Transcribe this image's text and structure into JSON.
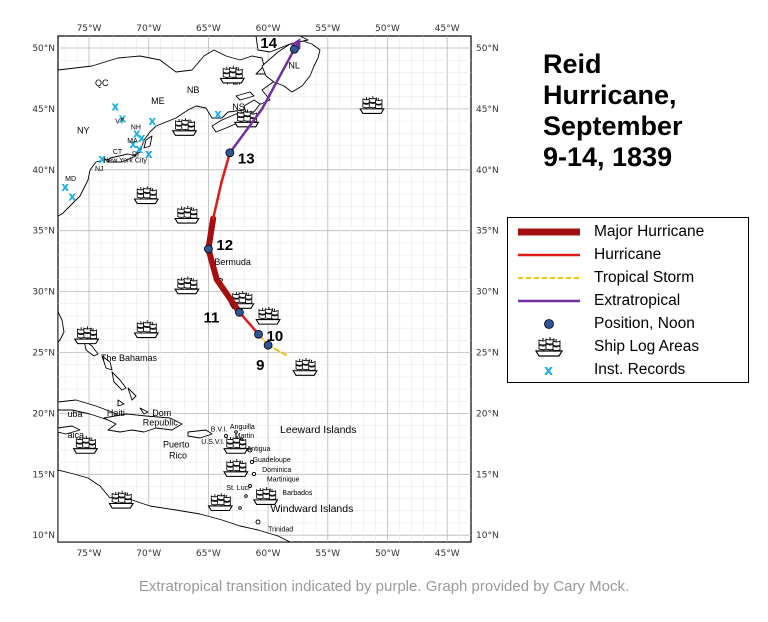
{
  "title_lines": [
    "Reid",
    "Hurricane,",
    "September",
    "9-14, 1839"
  ],
  "caption": "Extratropical transition indicated by purple. Graph provided by Cary Mock.",
  "axes": {
    "lon_labels": [
      "75°W",
      "70°W",
      "65°W",
      "60°W",
      "55°W",
      "50°W",
      "45°W"
    ],
    "lat_labels": [
      "50°N",
      "45°N",
      "40°N",
      "35°N",
      "30°N",
      "25°N",
      "20°N",
      "15°N",
      "10°N"
    ]
  },
  "colors": {
    "major": "#a50f0f",
    "hurricane": "#e01a1a",
    "tropical_storm": "#f0c020",
    "extratropical": "#7030a0",
    "noon": "#2f5597",
    "inst": "#1ab0e0"
  },
  "legend": [
    {
      "key": "major",
      "label": "Major Hurricane",
      "symbol": "thick-line"
    },
    {
      "key": "hurricane",
      "label": "Hurricane",
      "symbol": "line"
    },
    {
      "key": "tropical_storm",
      "label": "Tropical Storm",
      "symbol": "dashed-line"
    },
    {
      "key": "extratropical",
      "label": "Extratropical",
      "symbol": "line"
    },
    {
      "key": "noon",
      "label": "Position, Noon",
      "symbol": "dot"
    },
    {
      "key": "ship",
      "label": "Ship Log Areas",
      "symbol": "ship-icon"
    },
    {
      "key": "inst",
      "label": "Inst. Records",
      "symbol": "x-mark"
    }
  ],
  "track": [
    {
      "lon": -58.5,
      "lat": 24.8,
      "category": "tropical_storm"
    },
    {
      "lon": -60.0,
      "lat": 25.6,
      "category": "tropical_storm"
    },
    {
      "lon": -60.8,
      "lat": 26.5,
      "category": "hurricane"
    },
    {
      "lon": -62.4,
      "lat": 28.3,
      "category": "hurricane"
    },
    {
      "lon": -64.3,
      "lat": 31.0,
      "category": "major"
    },
    {
      "lon": -65.0,
      "lat": 33.5,
      "category": "major"
    },
    {
      "lon": -64.6,
      "lat": 36.0,
      "category": "hurricane"
    },
    {
      "lon": -63.9,
      "lat": 39.0,
      "category": "hurricane"
    },
    {
      "lon": -63.2,
      "lat": 41.4,
      "category": "extratropical"
    },
    {
      "lon": -60.5,
      "lat": 45.0,
      "category": "extratropical"
    },
    {
      "lon": -57.8,
      "lat": 49.9,
      "category": "extratropical"
    }
  ],
  "noon_positions": [
    {
      "day": "9",
      "lon": -60.0,
      "lat": 25.6
    },
    {
      "day": "10",
      "lon": -60.8,
      "lat": 26.5
    },
    {
      "day": "11",
      "lon": -62.4,
      "lat": 28.3
    },
    {
      "day": "12",
      "lon": -65.0,
      "lat": 33.5
    },
    {
      "day": "13",
      "lon": -63.2,
      "lat": 41.4
    },
    {
      "day": "14",
      "lon": -57.8,
      "lat": 49.9
    }
  ],
  "places": [
    {
      "text": "QC",
      "lon": -74.5,
      "lat": 46.9,
      "size": "normal"
    },
    {
      "text": "NB",
      "lon": -66.8,
      "lat": 46.3,
      "size": "normal"
    },
    {
      "text": "PEI",
      "lon": -63.5,
      "lat": 47.0,
      "size": "normal"
    },
    {
      "text": "NL",
      "lon": -58.3,
      "lat": 48.3,
      "size": "normal"
    },
    {
      "text": "ME",
      "lon": -69.8,
      "lat": 45.4,
      "size": "normal"
    },
    {
      "text": "NS",
      "lon": -63.0,
      "lat": 44.9,
      "size": "normal"
    },
    {
      "text": "NY",
      "lon": -76.0,
      "lat": 43.0,
      "size": "normal"
    },
    {
      "text": "VT",
      "lon": -72.8,
      "lat": 43.8,
      "size": "small"
    },
    {
      "text": "NH",
      "lon": -71.5,
      "lat": 43.3,
      "size": "small"
    },
    {
      "text": "MA",
      "lon": -71.8,
      "lat": 42.2,
      "size": "small"
    },
    {
      "text": "CT",
      "lon": -73.0,
      "lat": 41.3,
      "size": "small"
    },
    {
      "text": "RI",
      "lon": -71.4,
      "lat": 41.1,
      "size": "small"
    },
    {
      "text": "NJ",
      "lon": -74.5,
      "lat": 39.9,
      "size": "small"
    },
    {
      "text": "MD",
      "lon": -77.0,
      "lat": 39.1,
      "size": "small"
    },
    {
      "text": "New York City",
      "lon": -73.8,
      "lat": 40.6,
      "size": "small"
    },
    {
      "text": "Bermuda",
      "lon": -64.5,
      "lat": 32.2,
      "size": "normal"
    },
    {
      "text": "The Bahamas",
      "lon": -74.0,
      "lat": 24.3,
      "size": "normal"
    },
    {
      "text": "Haiti",
      "lon": -73.5,
      "lat": 19.8,
      "size": "normal"
    },
    {
      "text": "Dom",
      "lon": -69.7,
      "lat": 19.8,
      "size": "normal"
    },
    {
      "text": "Republic",
      "lon": -70.5,
      "lat": 19.0,
      "size": "normal"
    },
    {
      "text": "Puerto",
      "lon": -68.8,
      "lat": 17.2,
      "size": "normal"
    },
    {
      "text": "Rico",
      "lon": -68.3,
      "lat": 16.3,
      "size": "normal"
    },
    {
      "text": "B.V.I.",
      "lon": -64.8,
      "lat": 18.5,
      "size": "small"
    },
    {
      "text": "U.S.V.I.",
      "lon": -65.6,
      "lat": 17.5,
      "size": "small"
    },
    {
      "text": "Anguilla",
      "lon": -63.2,
      "lat": 18.7,
      "size": "small"
    },
    {
      "text": "Martin",
      "lon": -62.8,
      "lat": 18.0,
      "size": "small"
    },
    {
      "text": "Leeward Islands",
      "lon": -59.0,
      "lat": 18.4,
      "size": "large"
    },
    {
      "text": "Antigua",
      "lon": -61.8,
      "lat": 16.9,
      "size": "small"
    },
    {
      "text": "Guadeloupe",
      "lon": -61.3,
      "lat": 16.0,
      "size": "small"
    },
    {
      "text": "Dominica",
      "lon": -60.5,
      "lat": 15.2,
      "size": "small"
    },
    {
      "text": "Martinique",
      "lon": -60.1,
      "lat": 14.4,
      "size": "small"
    },
    {
      "text": "St. Luci",
      "lon": -63.5,
      "lat": 13.7,
      "size": "small"
    },
    {
      "text": "Barbados",
      "lon": -58.8,
      "lat": 13.3,
      "size": "small"
    },
    {
      "text": "Windward Islands",
      "lon": -59.8,
      "lat": 11.9,
      "size": "large"
    },
    {
      "text": "Trinidad",
      "lon": -60.0,
      "lat": 10.3,
      "size": "small"
    },
    {
      "text": "uba",
      "lon": -76.8,
      "lat": 19.7,
      "size": "normal"
    },
    {
      "text": "aica",
      "lon": -76.8,
      "lat": 18.0,
      "size": "normal"
    }
  ],
  "ship_areas": [
    {
      "lon": -63.0,
      "lat": 47.8
    },
    {
      "lon": -51.3,
      "lat": 45.3
    },
    {
      "lon": -61.8,
      "lat": 44.2
    },
    {
      "lon": -67.0,
      "lat": 43.5
    },
    {
      "lon": -70.2,
      "lat": 37.9
    },
    {
      "lon": -66.8,
      "lat": 36.3
    },
    {
      "lon": -66.8,
      "lat": 30.5
    },
    {
      "lon": -62.2,
      "lat": 29.3
    },
    {
      "lon": -60.0,
      "lat": 28.0
    },
    {
      "lon": -70.2,
      "lat": 26.9
    },
    {
      "lon": -75.2,
      "lat": 26.4
    },
    {
      "lon": -56.9,
      "lat": 23.8
    },
    {
      "lon": -62.7,
      "lat": 17.4
    },
    {
      "lon": -75.3,
      "lat": 17.4
    },
    {
      "lon": -62.7,
      "lat": 15.5
    },
    {
      "lon": -72.3,
      "lat": 12.9
    },
    {
      "lon": -64.0,
      "lat": 12.7
    },
    {
      "lon": -60.2,
      "lat": 13.2
    }
  ],
  "inst_records": [
    {
      "lon": -72.8,
      "lat": 45.2
    },
    {
      "lon": -72.2,
      "lat": 44.2
    },
    {
      "lon": -69.7,
      "lat": 44.0
    },
    {
      "lon": -64.2,
      "lat": 44.6
    },
    {
      "lon": -71.0,
      "lat": 43.0
    },
    {
      "lon": -70.6,
      "lat": 42.6
    },
    {
      "lon": -71.3,
      "lat": 42.1
    },
    {
      "lon": -70.8,
      "lat": 41.7
    },
    {
      "lon": -70.0,
      "lat": 41.3
    },
    {
      "lon": -73.9,
      "lat": 40.9
    },
    {
      "lon": -77.0,
      "lat": 38.6
    },
    {
      "lon": -76.4,
      "lat": 37.8
    }
  ]
}
